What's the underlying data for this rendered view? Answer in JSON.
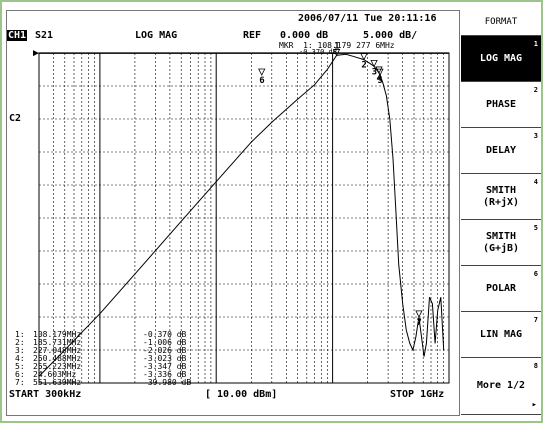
{
  "datetime": "2006/07/11 Tue 20:11:16",
  "header": {
    "channel": "CH1",
    "param": "S21",
    "format": "LOG MAG",
    "ref_label": "REF",
    "ref_value": "0.000 dB",
    "scale": "5.000 dB/",
    "trace_label": "C2"
  },
  "marker_readout": {
    "line1": "MKR  1: 108.179 277 6MHz",
    "line2": "-0.370 dB"
  },
  "marker_table": [
    {
      "n": "1:",
      "freq": "108.179MHz",
      "val": "-0.370 dB"
    },
    {
      "n": "2:",
      "freq": "185.731MHz",
      "val": "-1.006 dB"
    },
    {
      "n": "3:",
      "freq": "227.048MHz",
      "val": "-2.026 dB"
    },
    {
      "n": "4:",
      "freq": "250.488MHz",
      "val": "-3.023 dB"
    },
    {
      "n": "5:",
      "freq": "255.223MHz",
      "val": "-3.347 dB"
    },
    {
      "n": "6:",
      "freq": "24.603MHz",
      "val": "-3.336 dB"
    },
    {
      "n": "7:",
      "freq": "551.639MHz",
      "val": "-39.980 dB"
    }
  ],
  "footer": {
    "start": "START 300kHz",
    "power": "[ 10.00 dBm]",
    "stop": "STOP 1GHz"
  },
  "softkeys": {
    "title": "FORMAT",
    "items": [
      {
        "label": "LOG MAG",
        "num": "1"
      },
      {
        "label": "PHASE",
        "num": "2"
      },
      {
        "label": "DELAY",
        "num": "3"
      },
      {
        "label": "SMITH\n(R+jX)",
        "num": "4"
      },
      {
        "label": "SMITH\n(G+jB)",
        "num": "5"
      },
      {
        "label": "POLAR",
        "num": "6"
      },
      {
        "label": "LIN MAG",
        "num": "7"
      },
      {
        "label": "More 1/2",
        "num": "8"
      }
    ],
    "more_arrow": "▸"
  },
  "chart_data": {
    "type": "line",
    "x_scale": "log",
    "xlim_mhz": [
      0.3,
      1000
    ],
    "ylim_db": [
      -50,
      0
    ],
    "y_div_db": 5,
    "grid": true,
    "series": [
      {
        "x_mhz": [
          0.3,
          0.5,
          1,
          2,
          5,
          10,
          20,
          30,
          50,
          70,
          90,
          108.18,
          130,
          150,
          185.73,
          210,
          227.05,
          240,
          250.49,
          255.22,
          270,
          290,
          310,
          330,
          350,
          370,
          400,
          430,
          460,
          490,
          520,
          551.64,
          580,
          610,
          640,
          680,
          720,
          760,
          800,
          850,
          900
        ],
        "y_db": [
          -49,
          -45,
          -39.5,
          -33.5,
          -25.5,
          -19.5,
          -13.5,
          -10.5,
          -7,
          -4.8,
          -2.5,
          -0.37,
          -0.2,
          -0.5,
          -1.006,
          -1.6,
          -2.026,
          -2.6,
          -3.023,
          -3.347,
          -4.5,
          -6.5,
          -10,
          -16,
          -24,
          -32,
          -38,
          -42,
          -44,
          -45,
          -43,
          -39.98,
          -43,
          -46,
          -44,
          -37,
          -38,
          -44,
          -39,
          -37,
          -45
        ]
      }
    ],
    "markers": [
      {
        "label": "1",
        "x_mhz": 108.18,
        "y_db": -0.37
      },
      {
        "label": "2",
        "x_mhz": 185.73,
        "y_db": -1.006
      },
      {
        "label": "3",
        "x_mhz": 227.05,
        "y_db": -2.026
      },
      {
        "label": "4",
        "x_mhz": 250.49,
        "y_db": -3.023
      },
      {
        "label": "5",
        "x_mhz": 255.22,
        "y_db": -3.347
      },
      {
        "label": "6",
        "x_mhz": 24.6,
        "y_db": -3.336
      },
      {
        "label": "7",
        "x_mhz": 551.64,
        "y_db": -39.98
      }
    ]
  }
}
